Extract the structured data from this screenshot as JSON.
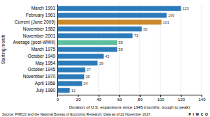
{
  "chart_data": {
    "type": "bar",
    "orientation": "horizontal",
    "categories": [
      "July 1980",
      "April 1958",
      "November 1970",
      "October 1945",
      "May 1954",
      "October 1949",
      "March 1975",
      "Average (post-WWII)",
      "November 2001",
      "November 1982",
      "Current (June 2009)",
      "February 1961",
      "March 1991"
    ],
    "values": [
      12,
      24,
      26,
      27,
      39,
      45,
      58,
      58,
      73,
      82,
      101,
      106,
      120
    ],
    "colors": [
      "#2b7bba",
      "#2b7bba",
      "#2b7bba",
      "#2b7bba",
      "#2b7bba",
      "#2b7bba",
      "#2b7bba",
      "#5cbfa0",
      "#2b7bba",
      "#2b7bba",
      "#c8892a",
      "#2b7bba",
      "#2b7bba"
    ],
    "xlabel": "Duration of U.S. expansions since 1945 (months, trough to peak)",
    "ylabel": "Starting month",
    "xlim": [
      0,
      140
    ],
    "xticks": [
      0,
      20,
      40,
      60,
      80,
      100,
      120,
      140
    ],
    "grid": true,
    "data_labels": true,
    "annotations": [
      "Source: PIMCO and the National Bureau of Economic Research. Data as of 21 November 2017.",
      "P  I  M  C  O"
    ]
  }
}
